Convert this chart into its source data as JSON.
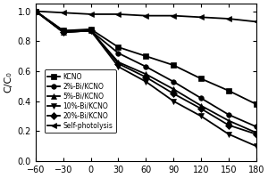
{
  "x": [
    -60,
    -30,
    0,
    30,
    60,
    90,
    120,
    150,
    180
  ],
  "series_order": [
    "KCNO",
    "2%-Bi/KCNO",
    "5%-Bi/KCNO",
    "10%-Bi/KCNO",
    "20%-Bi/KCNO",
    "Self-photolysis"
  ],
  "series": {
    "KCNO": [
      1.0,
      0.87,
      0.88,
      0.76,
      0.7,
      0.64,
      0.55,
      0.47,
      0.38
    ],
    "2%-Bi/KCNO": [
      1.0,
      0.87,
      0.87,
      0.72,
      0.63,
      0.53,
      0.42,
      0.31,
      0.23
    ],
    "5%-Bi/KCNO": [
      1.0,
      0.86,
      0.87,
      0.66,
      0.58,
      0.48,
      0.37,
      0.27,
      0.19
    ],
    "10%-Bi/KCNO": [
      1.0,
      0.86,
      0.87,
      0.63,
      0.53,
      0.4,
      0.3,
      0.18,
      0.1
    ],
    "20%-Bi/KCNO": [
      1.0,
      0.86,
      0.87,
      0.65,
      0.56,
      0.45,
      0.35,
      0.24,
      0.18
    ],
    "Self-photolysis": [
      1.0,
      0.99,
      0.98,
      0.98,
      0.97,
      0.97,
      0.96,
      0.95,
      0.93
    ]
  },
  "markers": {
    "KCNO": "s",
    "2%-Bi/KCNO": "o",
    "5%-Bi/KCNO": "^",
    "10%-Bi/KCNO": "v",
    "20%-Bi/KCNO": "D",
    "Self-photolysis": "<"
  },
  "xlim": [
    -60,
    180
  ],
  "ylim": [
    0.0,
    1.05
  ],
  "xticks": [
    -60,
    -30,
    0,
    30,
    60,
    90,
    120,
    150,
    180
  ],
  "yticks": [
    0.0,
    0.2,
    0.4,
    0.6,
    0.8,
    1.0
  ],
  "ylabel": "C/C₀",
  "line_color": "black",
  "markersize": 4,
  "linewidth": 1.3,
  "tick_fontsize": 7,
  "ylabel_fontsize": 8,
  "legend_fontsize": 5.5
}
